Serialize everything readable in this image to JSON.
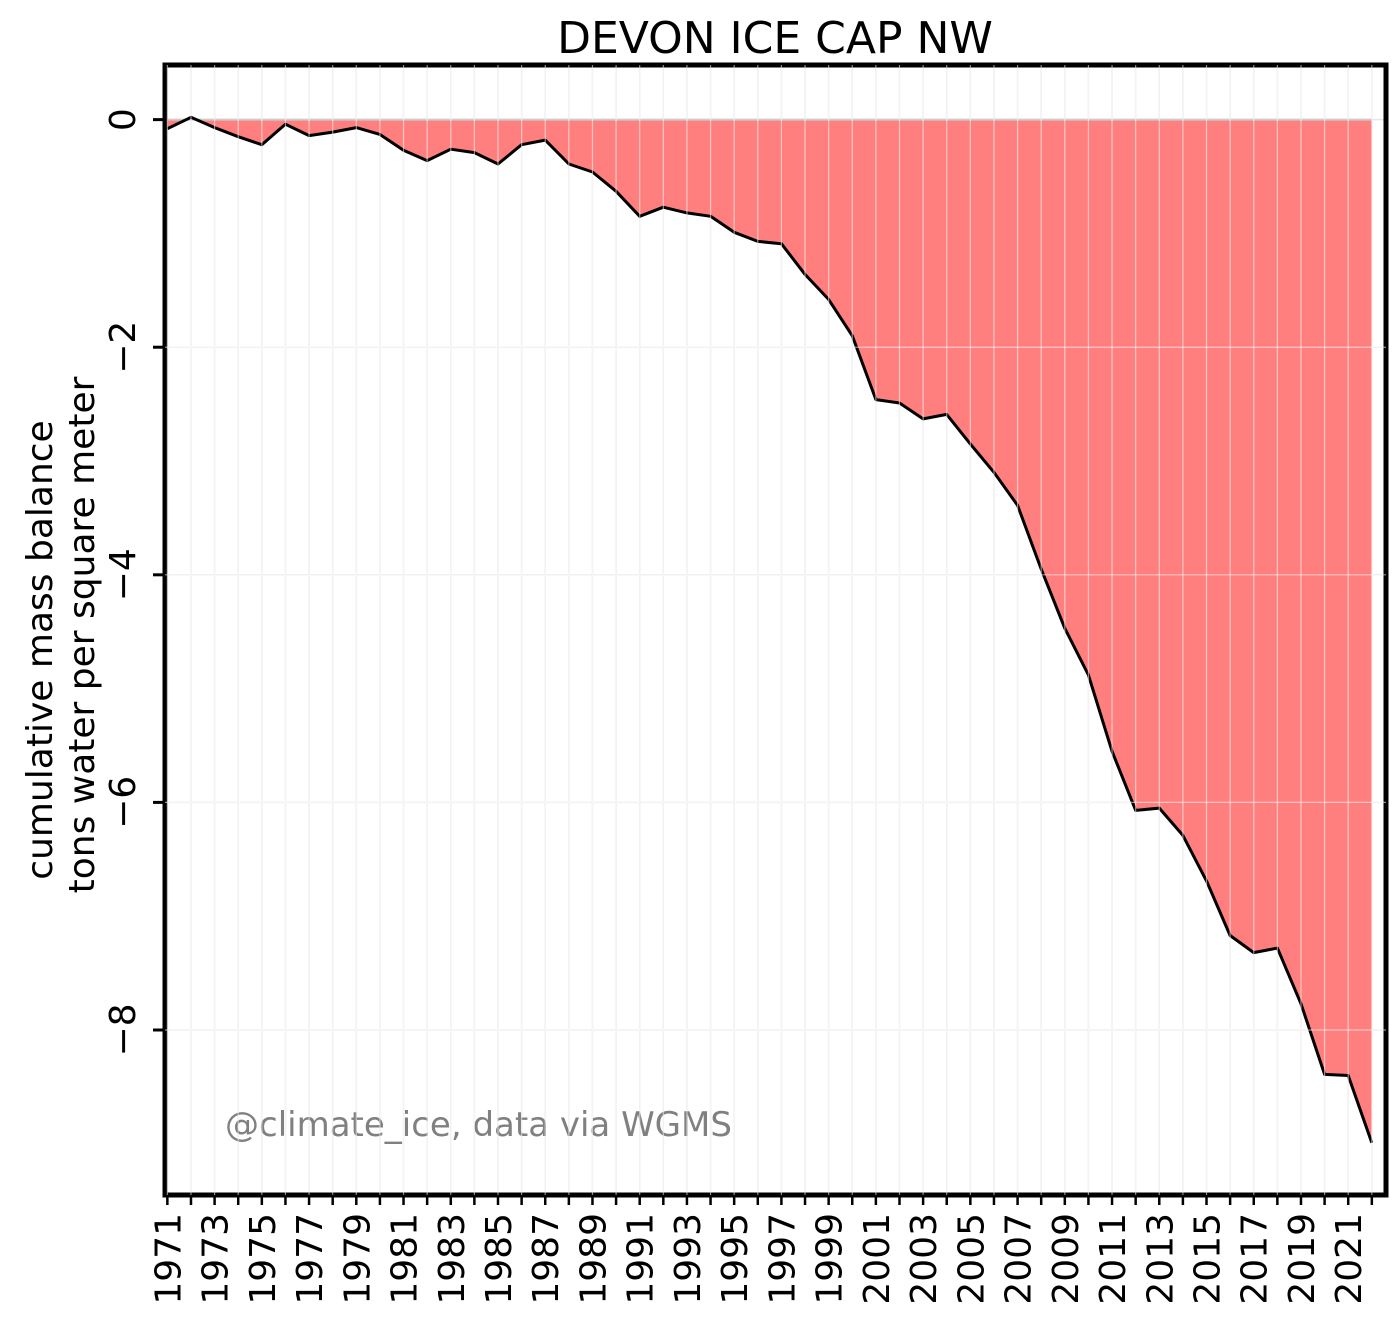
{
  "chart_data": {
    "type": "area",
    "title": "DEVON ICE CAP NW",
    "ylabel_lines": [
      "cumulative mass balance",
      "tons water per square meter"
    ],
    "xlabel": "",
    "watermark": "@climate_ice, data via WGMS",
    "x_tick_labels": [
      "1971",
      "1973",
      "1975",
      "1977",
      "1979",
      "1981",
      "1983",
      "1985",
      "1987",
      "1989",
      "1991",
      "1993",
      "1995",
      "1997",
      "1999",
      "2001",
      "2003",
      "2005",
      "2007",
      "2009",
      "2011",
      "2013",
      "2015",
      "2017",
      "2019",
      "2021"
    ],
    "y_tick_labels": [
      "0",
      "−2",
      "−4",
      "−6",
      "−8"
    ],
    "y_ticks": [
      0,
      -2,
      -4,
      -6,
      -8
    ],
    "xlim": [
      1970.9,
      2022.6
    ],
    "ylim": [
      -9.45,
      0.48
    ],
    "grid": true,
    "colors": {
      "fill": "#ff7f7f",
      "line": "#000000",
      "grid": "#e6e6e6",
      "watermark": "#808080"
    },
    "x": [
      1971,
      1972,
      1973,
      1974,
      1975,
      1976,
      1977,
      1978,
      1979,
      1980,
      1981,
      1982,
      1983,
      1984,
      1985,
      1986,
      1987,
      1988,
      1989,
      1990,
      1991,
      1992,
      1993,
      1994,
      1995,
      1996,
      1997,
      1998,
      1999,
      2000,
      2001,
      2002,
      2003,
      2004,
      2005,
      2006,
      2007,
      2008,
      2009,
      2010,
      2011,
      2012,
      2013,
      2014,
      2015,
      2016,
      2017,
      2018,
      2019,
      2020,
      2021,
      2022
    ],
    "values": [
      -0.08,
      0.02,
      -0.07,
      -0.15,
      -0.22,
      -0.04,
      -0.14,
      -0.11,
      -0.07,
      -0.13,
      -0.27,
      -0.36,
      -0.26,
      -0.29,
      -0.39,
      -0.22,
      -0.18,
      -0.39,
      -0.46,
      -0.63,
      -0.85,
      -0.77,
      -0.82,
      -0.85,
      -0.99,
      -1.07,
      -1.09,
      -1.36,
      -1.58,
      -1.9,
      -2.46,
      -2.49,
      -2.63,
      -2.59,
      -2.85,
      -3.1,
      -3.39,
      -3.95,
      -4.47,
      -4.88,
      -5.55,
      -6.07,
      -6.05,
      -6.29,
      -6.69,
      -7.17,
      -7.32,
      -7.28,
      -7.77,
      -8.39,
      -8.4,
      -8.99
    ]
  }
}
